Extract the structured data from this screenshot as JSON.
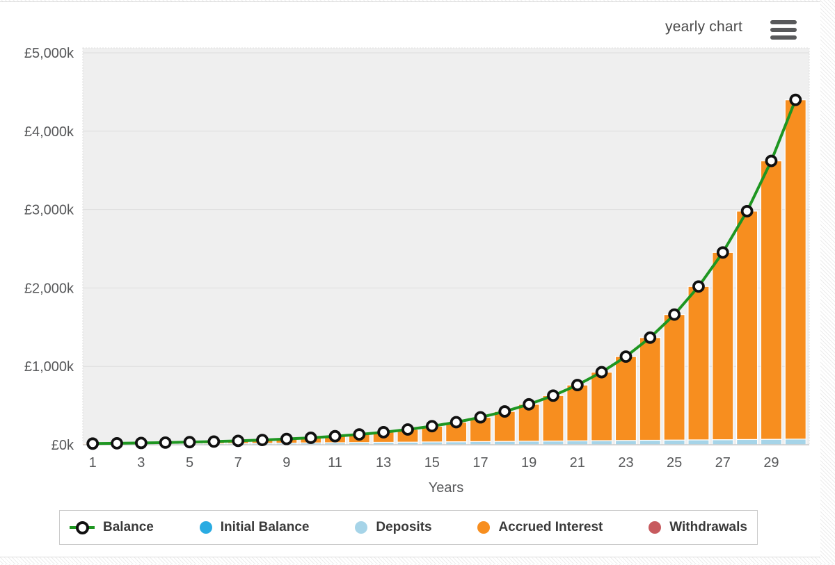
{
  "header": {
    "title": "yearly chart",
    "menu_icon": "hamburger-icon"
  },
  "axes": {
    "x_label": "Years",
    "x_ticks": [
      "1",
      "3",
      "5",
      "7",
      "9",
      "11",
      "13",
      "15",
      "17",
      "19",
      "21",
      "23",
      "25",
      "27",
      "29"
    ],
    "y_ticks": [
      {
        "value": 0,
        "label": "£0k"
      },
      {
        "value": 1000,
        "label": "£1,000k"
      },
      {
        "value": 2000,
        "label": "£2,000k"
      },
      {
        "value": 3000,
        "label": "£3,000k"
      },
      {
        "value": 4000,
        "label": "£4,000k"
      },
      {
        "value": 5000,
        "label": "£5,000k"
      }
    ]
  },
  "chart_data": {
    "type": "combo-stacked-bar-line",
    "title": "yearly chart",
    "xlabel": "Years",
    "ylabel": "",
    "units": "£ thousands (k)",
    "x": [
      1,
      2,
      3,
      4,
      5,
      6,
      7,
      8,
      9,
      10,
      11,
      12,
      13,
      14,
      15,
      16,
      17,
      18,
      19,
      20,
      21,
      22,
      23,
      24,
      25,
      26,
      27,
      28,
      29,
      30
    ],
    "ylim": [
      0,
      5062
    ],
    "y_tick_step": 1000,
    "bar_stacked": true,
    "grid": true,
    "legend_position": "bottom",
    "series": [
      {
        "name": "Balance",
        "type": "line",
        "color": "#1E9621",
        "values": [
          15,
          19,
          23,
          28,
          34,
          41,
          50,
          61,
          74,
          89,
          109,
          132,
          160,
          195,
          237,
          288,
          350,
          425,
          516,
          627,
          762,
          926,
          1125,
          1367,
          1661,
          2019,
          2453,
          2980,
          3621,
          4400
        ]
      },
      {
        "name": "Initial Balance",
        "type": "bar",
        "color": "#29ABE2",
        "values": [
          0,
          0,
          0,
          0,
          0,
          0,
          0,
          0,
          0,
          0,
          0,
          0,
          0,
          0,
          0,
          0,
          0,
          0,
          0,
          0,
          0,
          0,
          0,
          0,
          0,
          0,
          0,
          0,
          0,
          0
        ]
      },
      {
        "name": "Deposits",
        "type": "bar",
        "color": "#A6D4E8",
        "values": [
          2.4,
          4.8,
          7.2,
          9.6,
          12,
          14.4,
          16.8,
          19.2,
          21.6,
          24,
          26.4,
          28.8,
          31.2,
          33.6,
          36,
          38.4,
          40.8,
          43.2,
          45.6,
          48,
          50.4,
          52.8,
          55.2,
          57.6,
          60,
          62.4,
          64.8,
          67.2,
          69.6,
          72
        ]
      },
      {
        "name": "Accrued Interest",
        "type": "bar",
        "color": "#F78E1F",
        "values": [
          12.6,
          14.2,
          15.8,
          18.4,
          22,
          26.6,
          33.2,
          41.8,
          52.4,
          65,
          82.6,
          103.2,
          128.8,
          161.4,
          201,
          249.6,
          309.2,
          381.8,
          470.4,
          579,
          711.6,
          873.2,
          1069.8,
          1309.4,
          1601,
          1956.6,
          2388.2,
          2912.8,
          3551.4,
          4328
        ]
      },
      {
        "name": "Withdrawals",
        "type": "bar",
        "color": "#C75A5E",
        "values": [
          0,
          0,
          0,
          0,
          0,
          0,
          0,
          0,
          0,
          0,
          0,
          0,
          0,
          0,
          0,
          0,
          0,
          0,
          0,
          0,
          0,
          0,
          0,
          0,
          0,
          0,
          0,
          0,
          0,
          0
        ]
      }
    ]
  },
  "legend": {
    "items": [
      {
        "label": "Balance",
        "marker": "line-ring",
        "color": "#1E9621"
      },
      {
        "label": "Initial Balance",
        "marker": "circle",
        "color": "#29ABE2"
      },
      {
        "label": "Deposits",
        "marker": "circle",
        "color": "#A6D4E8"
      },
      {
        "label": "Accrued Interest",
        "marker": "circle",
        "color": "#F78E1F"
      },
      {
        "label": "Withdrawals",
        "marker": "circle",
        "color": "#C75A5E"
      }
    ]
  },
  "colors": {
    "plot_bg": "#EFEFEF",
    "plot_border": "#DDDDDD",
    "gridline": "#DEDEDE",
    "axis_line": "#CCCCCC",
    "axis_text": "#57585A",
    "bar_outline": "#FFFFFF",
    "marker_fill": "#FFFFFF",
    "marker_stroke": "#111111"
  }
}
